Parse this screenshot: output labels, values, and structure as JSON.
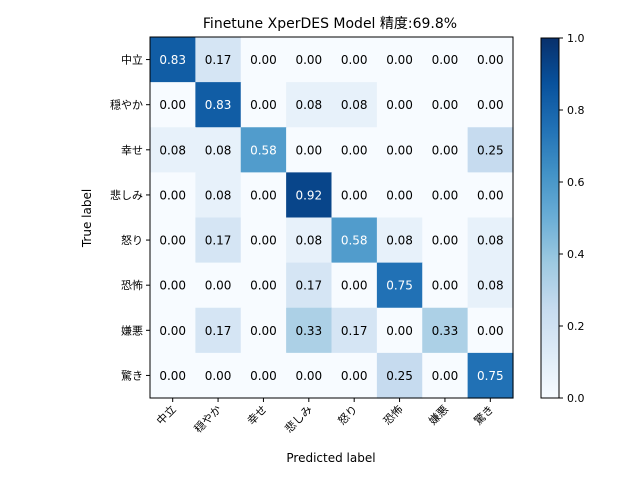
{
  "chart_data": {
    "type": "heatmap",
    "title": "Finetune XperDES Model 精度:69.8%",
    "xlabel": "Predicted label",
    "ylabel": "True label",
    "x_categories": [
      "中立",
      "穏やか",
      "幸せ",
      "悲しみ",
      "怒り",
      "恐怖",
      "嫌悪",
      "驚き"
    ],
    "y_categories": [
      "中立",
      "穏やか",
      "幸せ",
      "悲しみ",
      "怒り",
      "恐怖",
      "嫌悪",
      "驚き"
    ],
    "values": [
      [
        0.83,
        0.17,
        0.0,
        0.0,
        0.0,
        0.0,
        0.0,
        0.0
      ],
      [
        0.0,
        0.83,
        0.0,
        0.08,
        0.08,
        0.0,
        0.0,
        0.0
      ],
      [
        0.08,
        0.08,
        0.58,
        0.0,
        0.0,
        0.0,
        0.0,
        0.25
      ],
      [
        0.0,
        0.08,
        0.0,
        0.92,
        0.0,
        0.0,
        0.0,
        0.0
      ],
      [
        0.0,
        0.17,
        0.0,
        0.08,
        0.58,
        0.08,
        0.0,
        0.08
      ],
      [
        0.0,
        0.0,
        0.0,
        0.17,
        0.0,
        0.75,
        0.0,
        0.08
      ],
      [
        0.0,
        0.17,
        0.0,
        0.33,
        0.17,
        0.0,
        0.33,
        0.0
      ],
      [
        0.0,
        0.0,
        0.0,
        0.0,
        0.0,
        0.25,
        0.0,
        0.75
      ]
    ],
    "value_format": "0.00",
    "colormap": "Blues",
    "colorbar": {
      "range": [
        0.0,
        1.0
      ],
      "ticks": [
        "0.0",
        "0.2",
        "0.4",
        "0.6",
        "0.8",
        "1.0"
      ]
    },
    "text_color_light": "#ffffff",
    "text_color_dark": "#000000",
    "grid": false
  }
}
